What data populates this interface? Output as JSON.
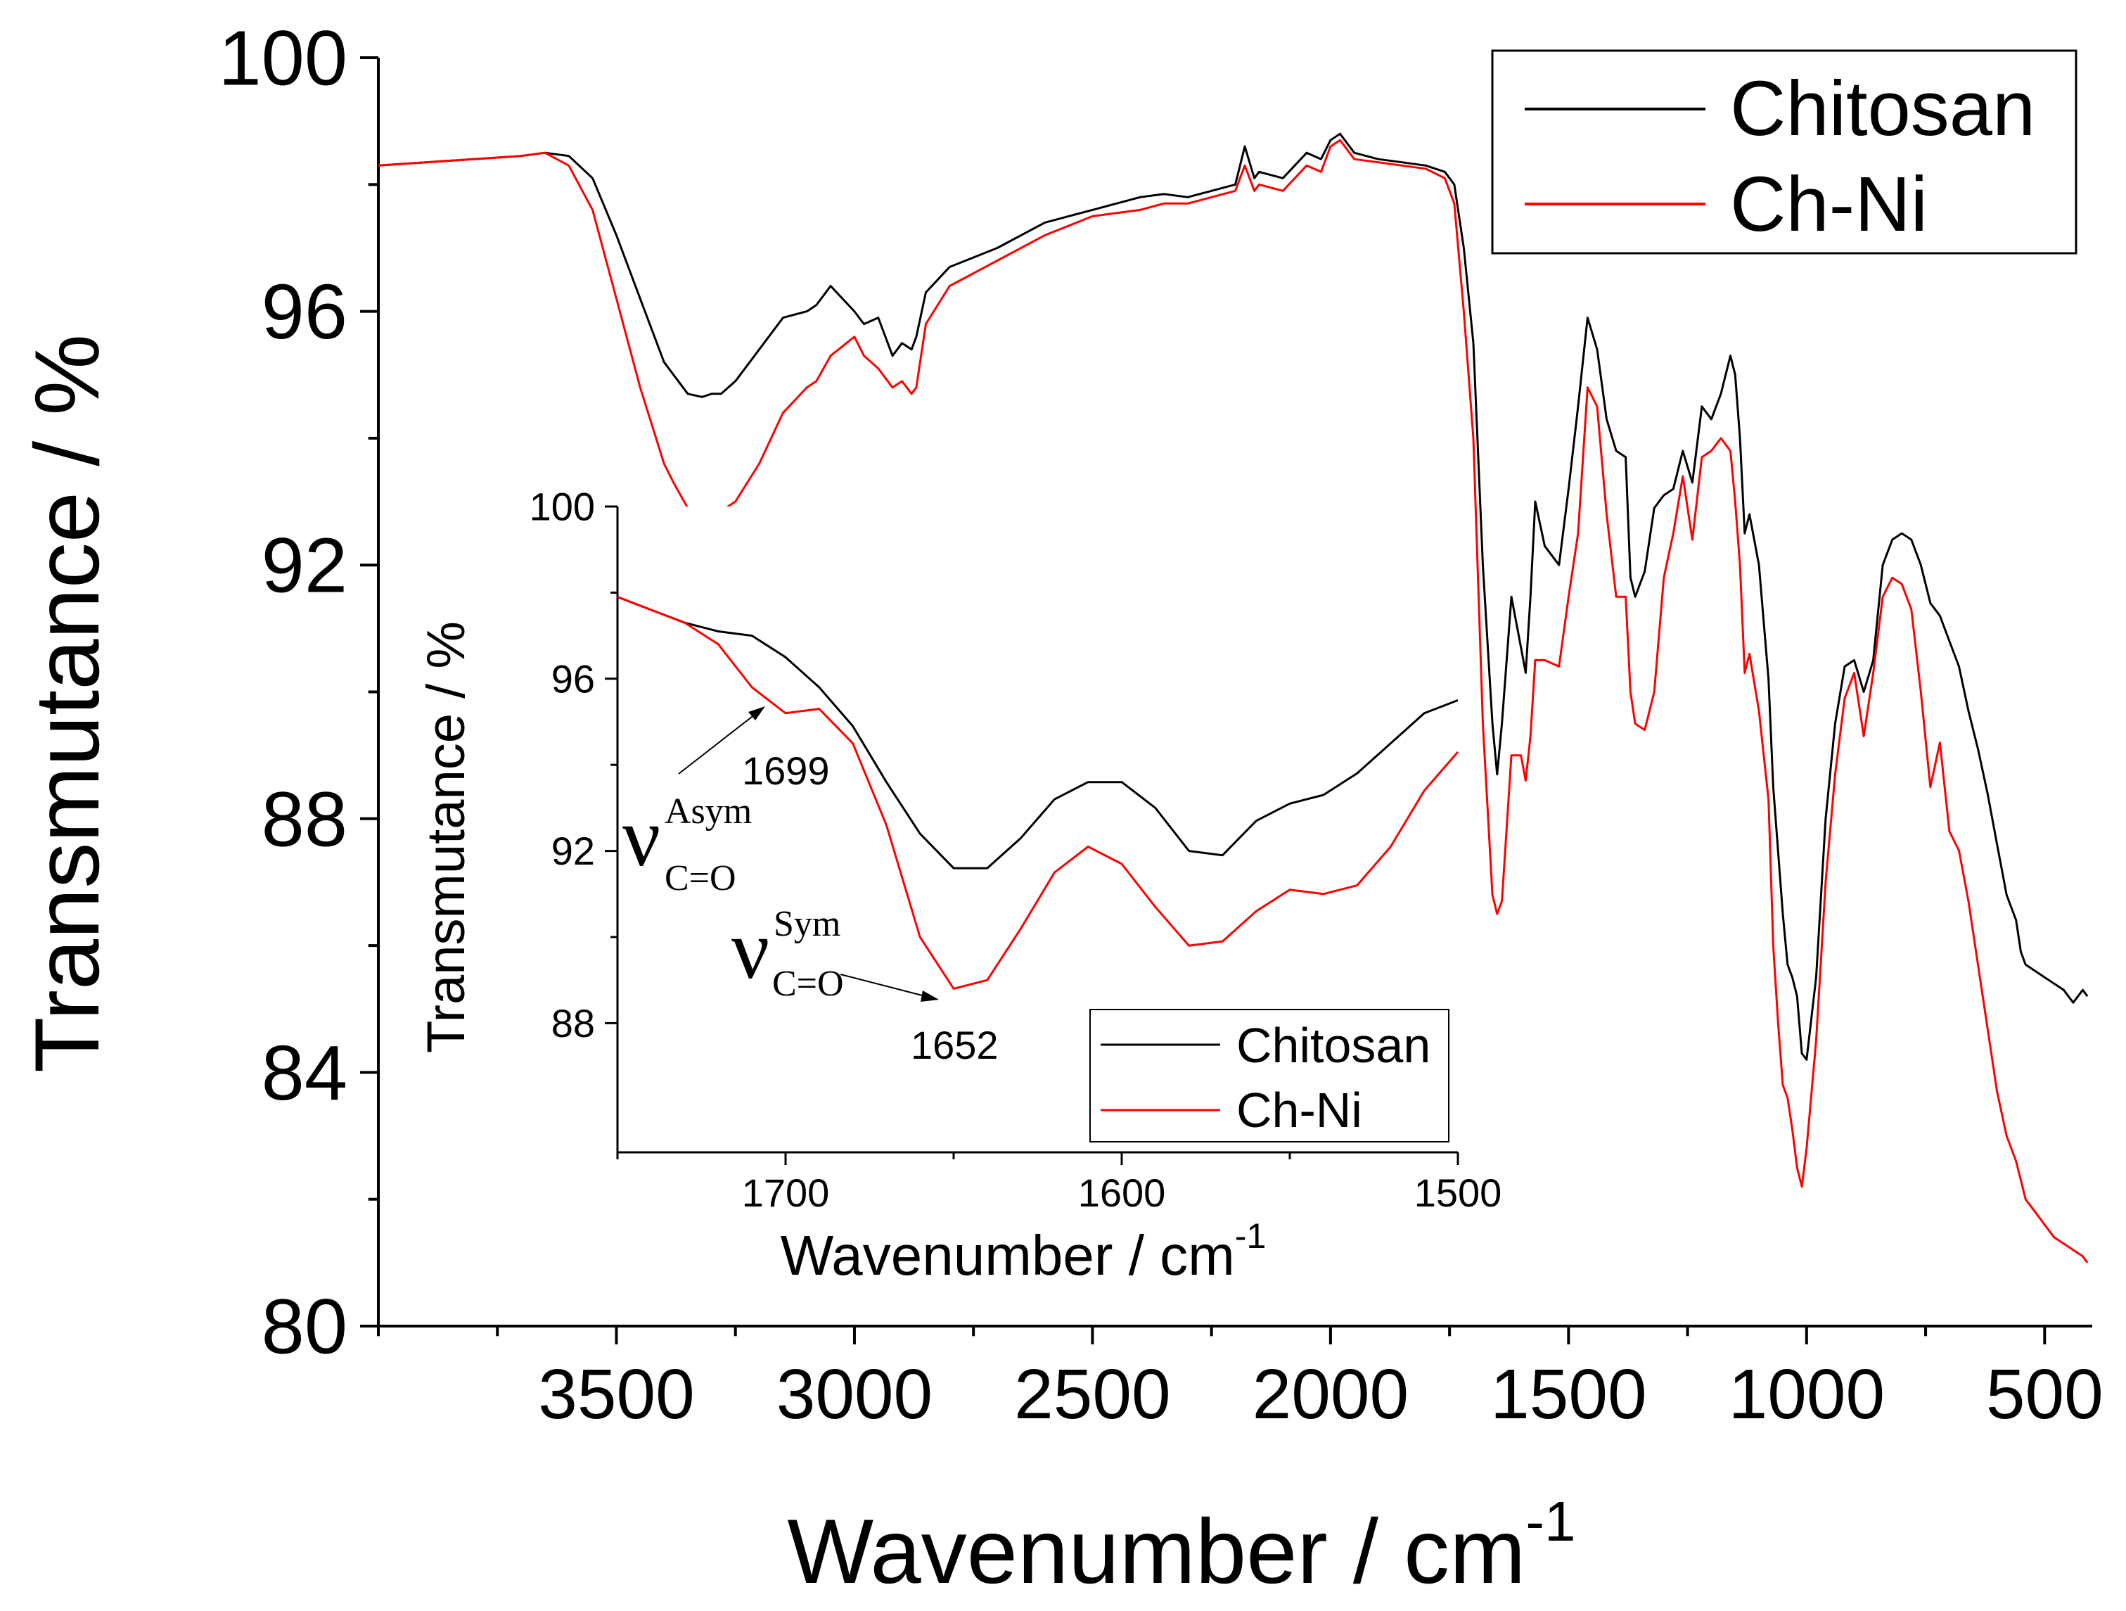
{
  "colors": {
    "chitosan": "#000000",
    "ch_ni": "#ff0000",
    "background": "#ffffff",
    "axis": "#000000"
  },
  "chart_data": [
    {
      "type": "line",
      "name": "main",
      "title": "",
      "xlabel": "Wavenumber / cm",
      "xlabel_sup": "-1",
      "ylabel": "Transmutance / %",
      "xlim": [
        4000,
        400
      ],
      "ylim": [
        80,
        100
      ],
      "x_reversed": true,
      "xticks": [
        3500,
        3000,
        2500,
        2000,
        1500,
        1000,
        500
      ],
      "yticks": [
        80,
        84,
        88,
        92,
        96,
        100
      ],
      "grid": false,
      "legend_position": "top-right",
      "series": [
        {
          "name": "Chitosan",
          "color": "#000000",
          "x": [
            4000,
            3900,
            3800,
            3700,
            3650,
            3600,
            3550,
            3500,
            3450,
            3400,
            3380,
            3350,
            3320,
            3300,
            3280,
            3250,
            3200,
            3150,
            3100,
            3080,
            3050,
            3000,
            2980,
            2950,
            2920,
            2900,
            2880,
            2870,
            2850,
            2800,
            2700,
            2600,
            2500,
            2400,
            2350,
            2300,
            2250,
            2200,
            2180,
            2160,
            2150,
            2100,
            2050,
            2020,
            2000,
            1980,
            1950,
            1900,
            1850,
            1800,
            1760,
            1740,
            1720,
            1700,
            1680,
            1660,
            1650,
            1640,
            1620,
            1600,
            1590,
            1580,
            1570,
            1550,
            1520,
            1500,
            1480,
            1460,
            1440,
            1420,
            1400,
            1380,
            1370,
            1360,
            1340,
            1320,
            1300,
            1280,
            1260,
            1240,
            1220,
            1200,
            1180,
            1160,
            1150,
            1140,
            1130,
            1120,
            1100,
            1080,
            1070,
            1060,
            1050,
            1040,
            1030,
            1020,
            1010,
            1000,
            980,
            960,
            940,
            920,
            900,
            880,
            860,
            840,
            820,
            800,
            780,
            760,
            740,
            720,
            700,
            680,
            660,
            640,
            620,
            600,
            580,
            560,
            550,
            540,
            520,
            500,
            480,
            460,
            440,
            420,
            410
          ],
          "values": [
            98.3,
            98.35,
            98.4,
            98.45,
            98.5,
            98.45,
            98.1,
            97.2,
            96.2,
            95.2,
            95.0,
            94.7,
            94.65,
            94.7,
            94.7,
            94.9,
            95.4,
            95.9,
            96.0,
            96.1,
            96.4,
            96.0,
            95.8,
            95.9,
            95.3,
            95.5,
            95.4,
            95.6,
            96.3,
            96.7,
            97.0,
            97.4,
            97.6,
            97.8,
            97.85,
            97.8,
            97.9,
            98.0,
            98.6,
            98.1,
            98.2,
            98.1,
            98.5,
            98.4,
            98.7,
            98.8,
            98.5,
            98.4,
            98.35,
            98.3,
            98.2,
            98.0,
            97.0,
            95.5,
            92.0,
            89.5,
            88.7,
            89.5,
            91.5,
            90.7,
            90.3,
            91.5,
            93.0,
            92.3,
            92.0,
            93.2,
            94.5,
            95.9,
            95.4,
            94.3,
            93.8,
            93.7,
            91.8,
            91.5,
            91.9,
            92.9,
            93.1,
            93.2,
            93.8,
            93.3,
            94.5,
            94.3,
            94.7,
            95.3,
            95.0,
            94.0,
            92.5,
            92.8,
            92.0,
            90.2,
            88.5,
            87.5,
            86.5,
            85.7,
            85.5,
            85.2,
            84.3,
            84.2,
            85.5,
            88.0,
            89.5,
            90.4,
            90.5,
            90.0,
            90.5,
            92.0,
            92.4,
            92.5,
            92.4,
            92.0,
            91.4,
            91.2,
            90.8,
            90.4,
            89.7,
            89.1,
            88.4,
            87.6,
            86.8,
            86.4,
            85.9,
            85.7,
            85.6,
            85.5,
            85.4,
            85.3,
            85.1,
            85.3,
            85.2
          ]
        },
        {
          "name": "Ch-Ni",
          "color": "#ff0000",
          "x": [
            4000,
            3900,
            3800,
            3700,
            3650,
            3600,
            3550,
            3500,
            3450,
            3400,
            3380,
            3350,
            3320,
            3300,
            3280,
            3250,
            3200,
            3150,
            3100,
            3080,
            3050,
            3000,
            2980,
            2950,
            2920,
            2900,
            2880,
            2870,
            2850,
            2800,
            2700,
            2600,
            2500,
            2400,
            2350,
            2300,
            2250,
            2200,
            2180,
            2160,
            2150,
            2100,
            2050,
            2020,
            2000,
            1980,
            1950,
            1900,
            1850,
            1800,
            1760,
            1740,
            1720,
            1700,
            1680,
            1660,
            1650,
            1640,
            1620,
            1600,
            1590,
            1580,
            1570,
            1550,
            1520,
            1500,
            1480,
            1460,
            1440,
            1420,
            1400,
            1380,
            1370,
            1360,
            1340,
            1320,
            1300,
            1280,
            1260,
            1240,
            1220,
            1200,
            1180,
            1160,
            1150,
            1140,
            1130,
            1120,
            1100,
            1080,
            1070,
            1060,
            1050,
            1040,
            1030,
            1020,
            1010,
            1000,
            980,
            960,
            940,
            920,
            900,
            880,
            860,
            840,
            820,
            800,
            780,
            760,
            740,
            720,
            700,
            680,
            660,
            640,
            620,
            600,
            580,
            560,
            550,
            540,
            520,
            500,
            480,
            460,
            440,
            420,
            410
          ],
          "values": [
            98.3,
            98.35,
            98.4,
            98.45,
            98.5,
            98.3,
            97.6,
            96.2,
            94.8,
            93.6,
            93.3,
            92.9,
            92.8,
            92.85,
            92.85,
            93.0,
            93.6,
            94.4,
            94.8,
            94.9,
            95.3,
            95.6,
            95.3,
            95.1,
            94.8,
            94.9,
            94.7,
            94.8,
            95.8,
            96.4,
            96.8,
            97.2,
            97.5,
            97.6,
            97.7,
            97.7,
            97.8,
            97.9,
            98.3,
            97.9,
            98.0,
            97.9,
            98.3,
            98.2,
            98.6,
            98.7,
            98.4,
            98.35,
            98.3,
            98.25,
            98.1,
            97.7,
            96.0,
            94.0,
            89.5,
            86.8,
            86.5,
            86.7,
            89.0,
            89.0,
            88.6,
            89.3,
            90.5,
            90.5,
            90.4,
            91.5,
            92.5,
            94.8,
            94.5,
            92.8,
            91.5,
            91.5,
            90.0,
            89.5,
            89.4,
            90.0,
            91.8,
            92.5,
            93.4,
            92.4,
            93.7,
            93.8,
            94.0,
            93.8,
            93.0,
            92.0,
            90.3,
            90.6,
            89.7,
            88.3,
            86.0,
            84.8,
            83.8,
            83.6,
            83.1,
            82.5,
            82.2,
            82.8,
            84.5,
            87.0,
            88.7,
            89.9,
            90.3,
            89.3,
            90.3,
            91.5,
            91.8,
            91.7,
            91.3,
            90.0,
            88.5,
            89.2,
            87.8,
            87.5,
            86.7,
            85.7,
            84.7,
            83.7,
            83.0,
            82.6,
            82.3,
            82.0,
            81.8,
            81.6,
            81.4,
            81.3,
            81.2,
            81.1,
            81.0
          ]
        }
      ],
      "legend": [
        "Chitosan",
        "Ch-Ni"
      ]
    },
    {
      "type": "line",
      "name": "inset",
      "title": "",
      "xlabel": "Wavenumber / cm",
      "xlabel_sup": "-1",
      "ylabel": "Transmutance / %",
      "xlim": [
        1750,
        1500
      ],
      "ylim": [
        85,
        100
      ],
      "x_reversed": true,
      "xticks": [
        1700,
        1600,
        1500
      ],
      "yticks": [
        88,
        92,
        96,
        100
      ],
      "grid": false,
      "legend_position": "bottom-right",
      "series": [
        {
          "name": "Chitosan",
          "color": "#000000",
          "x": [
            1750,
            1740,
            1730,
            1720,
            1710,
            1700,
            1690,
            1680,
            1670,
            1660,
            1650,
            1640,
            1630,
            1620,
            1610,
            1600,
            1590,
            1580,
            1570,
            1560,
            1550,
            1540,
            1530,
            1520,
            1510,
            1500
          ],
          "values": [
            97.9,
            97.6,
            97.3,
            97.1,
            97.0,
            96.5,
            95.8,
            94.9,
            93.6,
            92.4,
            91.6,
            91.6,
            92.3,
            93.2,
            93.6,
            93.6,
            93.0,
            92.0,
            91.9,
            92.7,
            93.1,
            93.3,
            93.8,
            94.5,
            95.2,
            95.5
          ]
        },
        {
          "name": "Ch-Ni",
          "color": "#ff0000",
          "x": [
            1750,
            1740,
            1730,
            1720,
            1710,
            1700,
            1690,
            1680,
            1670,
            1660,
            1650,
            1640,
            1630,
            1620,
            1610,
            1600,
            1590,
            1580,
            1570,
            1560,
            1550,
            1540,
            1530,
            1520,
            1510,
            1500
          ],
          "values": [
            97.9,
            97.6,
            97.3,
            96.8,
            95.8,
            95.2,
            95.3,
            94.5,
            92.6,
            90.0,
            88.8,
            89.0,
            90.2,
            91.5,
            92.1,
            91.7,
            90.7,
            89.8,
            89.9,
            90.6,
            91.1,
            91.0,
            91.2,
            92.1,
            93.4,
            94.3
          ]
        }
      ],
      "legend": [
        "Chitosan",
        "Ch-Ni"
      ],
      "annotations": {
        "asym": {
          "label": "1699",
          "nu": "ν",
          "sup": "Asym",
          "sub": "C=O",
          "x": 1699,
          "y": 95.2
        },
        "sym": {
          "label": "1652",
          "nu": "ν",
          "sup": "Sym",
          "sub": "C=O",
          "x": 1652,
          "y": 88.8
        }
      }
    }
  ]
}
